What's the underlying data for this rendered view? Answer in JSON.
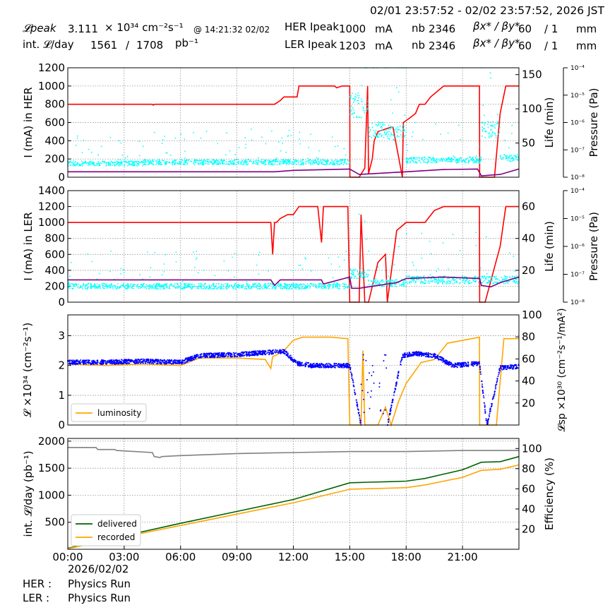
{
  "header": {
    "time_range": "02/01 23:57:52 - 02/02 23:57:52, 2026 JST",
    "lpeak_label": "𝓛peak",
    "lpeak_value": "3.111",
    "lpeak_unit": "× 10³⁴ cm⁻²s⁻¹",
    "lpeak_time": "@ 14:21:32 02/02",
    "intl_label": "int. 𝓛/day",
    "intl_value": "1561",
    "intl_sep": "/",
    "intl_total": "1708",
    "intl_unit": "pb⁻¹",
    "her_label": "HER Ipeak",
    "her_value": "1000",
    "ler_label": "LER Ipeak",
    "ler_value": "1203",
    "current_unit": "mA",
    "nb_label": "nb",
    "her_nb": "2346",
    "ler_nb": "2346",
    "beta_label": "βx* / βy*",
    "her_beta": "60",
    "ler_beta": "60",
    "beta_sep": "/ 1",
    "beta_unit": "mm"
  },
  "footer": {
    "date": "2026/02/02",
    "her_label": "HER :",
    "her_mode": "Physics Run",
    "ler_label": "LER :",
    "ler_mode": "Physics Run"
  },
  "colors": {
    "current": "#ff0000",
    "life": "#00ffff",
    "pressure": "#800080",
    "luminosity": "#ffa500",
    "specific_lumi": "#0000ff",
    "delivered": "#006400",
    "recorded": "#ffa500",
    "efficiency": "#808080",
    "grid": "#808080"
  },
  "chart_data": [
    {
      "type": "line",
      "id": "her",
      "x_unit": "hours since 00:00",
      "xlim": [
        0,
        24
      ],
      "ylabel": "I (mA) in HER",
      "ylim": [
        0,
        1200
      ],
      "yticks": [
        0,
        200,
        400,
        600,
        800,
        1000,
        1200
      ],
      "right_axes": [
        {
          "label": "Life (min)",
          "lim": [
            0,
            160
          ],
          "ticks": [
            50,
            100,
            150
          ],
          "tick_labels": [
            "50",
            "100",
            "150"
          ]
        },
        {
          "label": "Pressure (Pa)",
          "scale": "log",
          "lim": [
            -8,
            -4
          ],
          "tick_labels": [
            "10⁻⁸",
            "10⁻⁷",
            "10⁻⁶",
            "10⁻⁵",
            "10⁻⁴"
          ]
        }
      ],
      "series": [
        {
          "role": "current",
          "color_key": "current",
          "axis": "left",
          "x": [
            0,
            4.5,
            4.55,
            4.6,
            11.0,
            11.3,
            11.5,
            12.2,
            12.3,
            13.5,
            14.2,
            14.3,
            14.6,
            14.9,
            15.0,
            15.01,
            15.5,
            15.8,
            15.95,
            16.0,
            16.2,
            16.3,
            16.5,
            17.2,
            17.3,
            17.8,
            17.85,
            18.2,
            18.5,
            18.7,
            19.0,
            19.3,
            20.0,
            21.0,
            21.9,
            21.91,
            22.7,
            23.0,
            23.3,
            24
          ],
          "y": [
            800,
            800,
            790,
            800,
            800,
            840,
            880,
            880,
            1000,
            1000,
            1000,
            980,
            1000,
            1000,
            1000,
            0,
            0,
            100,
            1000,
            40,
            200,
            400,
            500,
            550,
            550,
            0,
            600,
            650,
            700,
            800,
            800,
            880,
            1000,
            1000,
            1000,
            0,
            0,
            700,
            1000,
            1000
          ]
        },
        {
          "role": "life",
          "color_key": "life",
          "axis": "right",
          "style": "dots",
          "pattern": [
            [
              0,
              4,
              20
            ],
            [
              4,
              15,
              22
            ],
            [
              15,
              16,
              105
            ],
            [
              16,
              17,
              70
            ],
            [
              17,
              18,
              65
            ],
            [
              18,
              22,
              25
            ],
            [
              22,
              23,
              70
            ],
            [
              23,
              24,
              28
            ]
          ]
        },
        {
          "role": "pressure",
          "color_key": "pressure",
          "axis": "log",
          "x": [
            0,
            11,
            12,
            15,
            15.5,
            18,
            20,
            21.8,
            22,
            23,
            24
          ],
          "y": [
            -7.8,
            -7.8,
            -7.75,
            -7.7,
            -7.9,
            -7.8,
            -7.72,
            -7.7,
            -7.95,
            -7.9,
            -7.7
          ]
        }
      ]
    },
    {
      "type": "line",
      "id": "ler",
      "x_unit": "hours since 00:00",
      "xlim": [
        0,
        24
      ],
      "ylabel": "I (mA) in LER",
      "ylim": [
        0,
        1400
      ],
      "yticks": [
        0,
        200,
        400,
        600,
        800,
        1000,
        1200,
        1400
      ],
      "right_axes": [
        {
          "label": "Life (min)",
          "lim": [
            0,
            70
          ],
          "ticks": [
            20,
            40,
            60
          ],
          "tick_labels": [
            "20",
            "40",
            "60"
          ]
        },
        {
          "label": "Pressure (Pa)",
          "scale": "log",
          "lim": [
            -8,
            -4
          ],
          "tick_labels": [
            "10⁻⁸",
            "10⁻⁷",
            "10⁻⁶",
            "10⁻⁵",
            "10⁻⁴"
          ]
        }
      ],
      "series": [
        {
          "role": "current",
          "color_key": "current",
          "axis": "left",
          "x": [
            0,
            10.8,
            10.9,
            11.0,
            11.1,
            11.3,
            11.7,
            12.0,
            12.3,
            13.3,
            13.5,
            13.6,
            13.7,
            14.9,
            15.0,
            15.5,
            15.6,
            15.8,
            16.0,
            16.5,
            16.9,
            17.0,
            17.5,
            18.0,
            18.5,
            19.0,
            19.5,
            20.0,
            20.5,
            21.9,
            21.91,
            22.2,
            23.0,
            23.3,
            24
          ],
          "y": [
            1000,
            1000,
            600,
            1000,
            1000,
            1050,
            1100,
            1100,
            1200,
            1200,
            750,
            1200,
            1200,
            1200,
            0,
            0,
            1100,
            0,
            0,
            500,
            600,
            0,
            900,
            1000,
            1000,
            1000,
            1150,
            1200,
            1200,
            1200,
            0,
            0,
            700,
            1200,
            1200
          ]
        },
        {
          "role": "life",
          "color_key": "life",
          "axis": "right",
          "style": "dots",
          "pattern": [
            [
              0,
              15,
              10
            ],
            [
              15,
              16,
              18
            ],
            [
              16,
              18,
              12
            ],
            [
              18,
              22,
              14
            ],
            [
              22,
              24,
              14
            ]
          ]
        },
        {
          "role": "pressure",
          "color_key": "pressure",
          "axis": "log",
          "x": [
            0,
            10.8,
            11.0,
            11.3,
            13.5,
            13.6,
            15.0,
            15.1,
            15.5,
            16.5,
            17.5,
            18.0,
            20.0,
            21.9,
            22.0,
            22.5,
            23.0,
            24
          ],
          "y": [
            -7.2,
            -7.2,
            -7.4,
            -7.2,
            -7.2,
            -7.35,
            -7.1,
            -7.5,
            -7.5,
            -7.4,
            -7.3,
            -7.15,
            -7.1,
            -7.15,
            -7.4,
            -7.45,
            -7.3,
            -7.1
          ]
        }
      ]
    },
    {
      "type": "line",
      "id": "lumi",
      "x_unit": "hours since 00:00",
      "xlim": [
        0,
        24
      ],
      "ylabel": "𝓛 ×10³⁴ (cm⁻²s⁻¹)",
      "ylim": [
        0,
        3.7
      ],
      "yticks": [
        0,
        1,
        2,
        3
      ],
      "right_axes": [
        {
          "label": "𝓛sp ×10³⁰ (cm⁻²s⁻¹/mA²)",
          "lim": [
            0,
            100
          ],
          "ticks": [
            20,
            40,
            60,
            80,
            100
          ],
          "tick_labels": [
            "20",
            "40",
            "60",
            "80",
            "100"
          ]
        }
      ],
      "legend": {
        "position": "bottom-left",
        "entries": [
          "luminosity"
        ]
      },
      "series": [
        {
          "role": "luminosity",
          "name": "luminosity",
          "color_key": "luminosity",
          "axis": "left",
          "x": [
            0,
            2,
            4,
            6,
            7,
            9,
            10.5,
            10.8,
            10.9,
            11.1,
            11.5,
            12.0,
            12.5,
            14,
            14.9,
            15.0,
            15.6,
            15.7,
            15.8,
            16.5,
            16.9,
            17.2,
            17.6,
            18.0,
            18.8,
            19.5,
            20.2,
            21.9,
            21.91,
            22.8,
            23.2,
            24
          ],
          "y": [
            2.05,
            2.0,
            2.05,
            2.0,
            2.25,
            2.25,
            2.2,
            1.9,
            2.3,
            2.35,
            2.5,
            2.85,
            2.95,
            2.95,
            2.9,
            0,
            0,
            2.5,
            0,
            0,
            0.6,
            0,
            0.8,
            1.4,
            2.1,
            2.2,
            2.75,
            2.95,
            0,
            0,
            2.9,
            2.9
          ]
        },
        {
          "role": "specific_lumi",
          "color_key": "specific_lumi",
          "axis": "right",
          "style": "dots",
          "x": [
            0,
            2,
            4,
            6,
            7,
            9,
            11.5,
            12.2,
            13,
            15,
            15.6,
            16.3,
            17.0,
            17.8,
            18.5,
            19.5,
            20.5,
            21.9,
            22.3,
            23,
            24
          ],
          "y": [
            57,
            57,
            58,
            57,
            63,
            64,
            67,
            56,
            54,
            54,
            0,
            0,
            0,
            63,
            65,
            63,
            54,
            56,
            0,
            52,
            53
          ]
        }
      ]
    },
    {
      "type": "line",
      "id": "intl",
      "x_unit": "hours since 00:00",
      "xlim": [
        0,
        24
      ],
      "ylabel": "int. 𝓛/day (pb⁻¹)",
      "ylim": [
        0,
        2050
      ],
      "yticks": [
        500,
        1000,
        1500,
        2000
      ],
      "right_axes": [
        {
          "label": "Efficiency (%)",
          "lim": [
            0,
            110
          ],
          "ticks": [
            20,
            40,
            60,
            80,
            100
          ],
          "tick_labels": [
            "20",
            "40",
            "60",
            "80",
            "100"
          ]
        }
      ],
      "legend": {
        "position": "bottom-left",
        "entries": [
          "delivered",
          "recorded"
        ]
      },
      "xticks": [
        0,
        3,
        6,
        9,
        12,
        15,
        18,
        21
      ],
      "xtick_labels": [
        "00:00",
        "03:00",
        "06:00",
        "09:00",
        "12:00",
        "15:00",
        "18:00",
        "21:00"
      ],
      "series": [
        {
          "role": "delivered",
          "name": "delivered",
          "color_key": "delivered",
          "axis": "left",
          "x": [
            0,
            3,
            6,
            9,
            12,
            15,
            16,
            17,
            18,
            19,
            20,
            21,
            22,
            23,
            24
          ],
          "y": [
            20,
            250,
            480,
            700,
            920,
            1230,
            1240,
            1250,
            1260,
            1310,
            1390,
            1470,
            1610,
            1620,
            1715
          ]
        },
        {
          "role": "recorded",
          "name": "recorded",
          "color_key": "recorded",
          "axis": "left",
          "x": [
            0,
            3,
            6,
            9,
            12,
            15,
            16,
            17,
            18,
            19,
            20,
            21,
            22,
            23,
            24
          ],
          "y": [
            10,
            230,
            440,
            650,
            860,
            1110,
            1120,
            1130,
            1140,
            1190,
            1260,
            1330,
            1460,
            1480,
            1560
          ]
        },
        {
          "role": "efficiency",
          "color_key": "efficiency",
          "axis": "right",
          "x": [
            0,
            1.5,
            1.6,
            2.5,
            2.6,
            4.5,
            4.6,
            4.9,
            5.0,
            6,
            9,
            12,
            15,
            18,
            21,
            24
          ],
          "y": [
            101,
            101,
            99,
            99,
            98,
            96,
            92,
            91,
            92,
            93,
            95,
            96,
            97,
            97,
            98,
            98
          ]
        }
      ]
    }
  ]
}
